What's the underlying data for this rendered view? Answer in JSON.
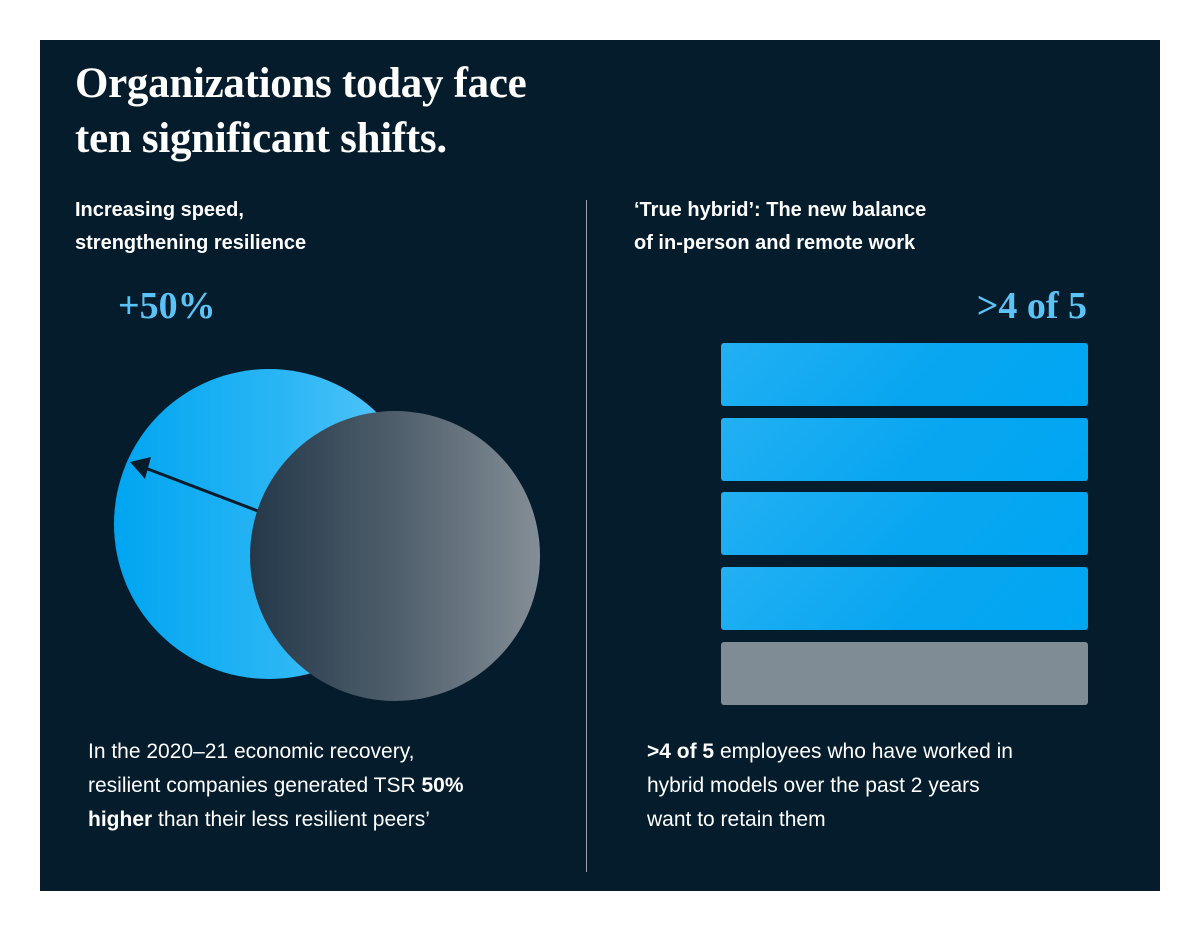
{
  "title": {
    "line1": "Organizations today face",
    "line2": "ten significant shifts."
  },
  "left": {
    "heading_line1": "Increasing speed,",
    "heading_line2": "strengthening resilience",
    "stat": "+50%",
    "desc": {
      "line1": "In the 2020–21 economic recovery,",
      "line2_a": "resilient companies generated TSR ",
      "line2_b": "50%",
      "line3_a": "higher",
      "line3_b": " than their less resilient peers’"
    },
    "colors": {
      "large_circle": "#1aa8f0",
      "small_circle": "#56646e",
      "arrow": "#051c2c"
    }
  },
  "right": {
    "heading_line1": "‘True hybrid’: The new balance",
    "heading_line2": "of in-person and remote work",
    "stat": ">4 of 5",
    "bars_filled": 4,
    "bars_total": 5,
    "desc": {
      "line1_a": ">4 of 5",
      "line1_b": " employees who have worked in",
      "line2": "hybrid models over the past 2 years",
      "line3": "want to retain them"
    },
    "colors": {
      "filled_bar": "#08a6f1",
      "empty_bar": "#7f8c95"
    }
  },
  "colors": {
    "background": "#051c2c",
    "accent": "#5bc3f5",
    "text": "#ffffff"
  }
}
